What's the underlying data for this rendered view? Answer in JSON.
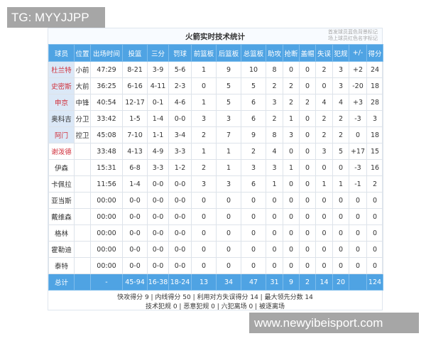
{
  "watermark_top": "TG: MYYJJPP",
  "watermark_bottom": "www.newyibeisport.com",
  "title": "火箭实时技术统计",
  "legend": [
    "首发球员蓝色背景标记",
    "场上球员红色名字标记"
  ],
  "colors": {
    "header": "#4fa3e3",
    "starter_bg": "#dbe8f7",
    "on_court_name": "#d0303c"
  },
  "columns": [
    "球员",
    "位置",
    "出场时间",
    "投篮",
    "三分",
    "罚球",
    "前篮板",
    "后篮板",
    "总篮板",
    "助攻",
    "抢断",
    "盖帽",
    "失误",
    "犯规",
    "+/-",
    "得分"
  ],
  "rows": [
    {
      "starter": true,
      "on_court": true,
      "cells": [
        "杜兰特",
        "小前",
        "47:29",
        "8-21",
        "3-9",
        "5-6",
        "1",
        "9",
        "10",
        "8",
        "0",
        "0",
        "2",
        "3",
        "+2",
        "24"
      ]
    },
    {
      "starter": true,
      "on_court": true,
      "cells": [
        "史密斯",
        "大前",
        "36:25",
        "6-16",
        "4-11",
        "2-3",
        "0",
        "5",
        "5",
        "2",
        "2",
        "0",
        "0",
        "3",
        "-20",
        "18"
      ]
    },
    {
      "starter": true,
      "on_court": true,
      "cells": [
        "申京",
        "中锋",
        "40:54",
        "12-17",
        "0-1",
        "4-6",
        "1",
        "5",
        "6",
        "3",
        "2",
        "2",
        "4",
        "4",
        "+3",
        "28"
      ]
    },
    {
      "starter": true,
      "on_court": false,
      "cells": [
        "奥科吉",
        "分卫",
        "33:42",
        "1-5",
        "1-4",
        "0-0",
        "3",
        "3",
        "6",
        "2",
        "1",
        "0",
        "2",
        "2",
        "-3",
        "3"
      ]
    },
    {
      "starter": true,
      "on_court": true,
      "cells": [
        "阿门",
        "控卫",
        "45:08",
        "7-10",
        "1-1",
        "3-4",
        "2",
        "7",
        "9",
        "8",
        "3",
        "0",
        "2",
        "2",
        "0",
        "18"
      ]
    },
    {
      "starter": false,
      "on_court": true,
      "cells": [
        "谢泼德",
        "",
        "33:48",
        "4-13",
        "4-9",
        "3-3",
        "1",
        "1",
        "2",
        "4",
        "0",
        "0",
        "3",
        "5",
        "+17",
        "15"
      ]
    },
    {
      "starter": false,
      "on_court": false,
      "cells": [
        "伊森",
        "",
        "15:31",
        "6-8",
        "3-3",
        "1-2",
        "2",
        "1",
        "3",
        "3",
        "1",
        "0",
        "0",
        "0",
        "-3",
        "16"
      ]
    },
    {
      "starter": false,
      "on_court": false,
      "cells": [
        "卡佩拉",
        "",
        "11:56",
        "1-4",
        "0-0",
        "0-0",
        "3",
        "3",
        "6",
        "1",
        "0",
        "0",
        "1",
        "1",
        "-1",
        "2"
      ]
    },
    {
      "starter": false,
      "on_court": false,
      "cells": [
        "亚当斯",
        "",
        "00:00",
        "0-0",
        "0-0",
        "0-0",
        "0",
        "0",
        "0",
        "0",
        "0",
        "0",
        "0",
        "0",
        "0",
        "0"
      ]
    },
    {
      "starter": false,
      "on_court": false,
      "cells": [
        "戴维森",
        "",
        "00:00",
        "0-0",
        "0-0",
        "0-0",
        "0",
        "0",
        "0",
        "0",
        "0",
        "0",
        "0",
        "0",
        "0",
        "0"
      ]
    },
    {
      "starter": false,
      "on_court": false,
      "cells": [
        "格林",
        "",
        "00:00",
        "0-0",
        "0-0",
        "0-0",
        "0",
        "0",
        "0",
        "0",
        "0",
        "0",
        "0",
        "0",
        "0",
        "0"
      ]
    },
    {
      "starter": false,
      "on_court": false,
      "cells": [
        "霍勒迪",
        "",
        "00:00",
        "0-0",
        "0-0",
        "0-0",
        "0",
        "0",
        "0",
        "0",
        "0",
        "0",
        "0",
        "0",
        "0",
        "0"
      ]
    },
    {
      "starter": false,
      "on_court": false,
      "cells": [
        "泰特",
        "",
        "00:00",
        "0-0",
        "0-0",
        "0-0",
        "0",
        "0",
        "0",
        "0",
        "0",
        "0",
        "0",
        "0",
        "0",
        "0"
      ]
    }
  ],
  "totals": [
    "总计",
    "",
    "-",
    "45-94",
    "16-38",
    "18-24",
    "13",
    "34",
    "47",
    "31",
    "9",
    "2",
    "14",
    "20",
    "",
    "124"
  ],
  "footer": [
    "快攻得分 9 | 内线得分 50 | 利用对方失误得分 14 | 最大领先分数 14",
    "技术犯规 0 | 恶意犯规 0 | 六犯离场 0 | 被逐离场"
  ]
}
